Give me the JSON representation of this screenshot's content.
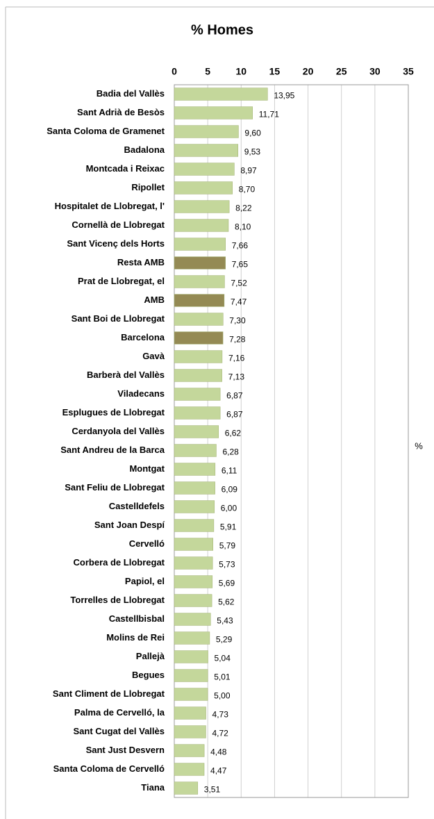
{
  "chart_data": {
    "type": "bar",
    "orientation": "horizontal",
    "title": "% Homes",
    "x_label": "%",
    "categories": [
      "Badia del Vallès",
      "Sant Adrià de Besòs",
      "Santa Coloma de Gramenet",
      "Badalona",
      "Montcada i Reixac",
      "Ripollet",
      "Hospitalet de Llobregat, l'",
      "Cornellà de Llobregat",
      "Sant Vicenç dels Horts",
      "Resta AMB",
      "Prat de Llobregat, el",
      "AMB",
      "Sant Boi de Llobregat",
      "Barcelona",
      "Gavà",
      "Barberà del Vallès",
      "Viladecans",
      "Esplugues de Llobregat",
      "Cerdanyola del Vallès",
      "Sant Andreu de la Barca",
      "Montgat",
      "Sant Feliu de Llobregat",
      "Castelldefels",
      "Sant Joan Despí",
      "Cervelló",
      "Corbera de Llobregat",
      "Papiol, el",
      "Torrelles de Llobregat",
      "Castellbisbal",
      "Molins de Rei",
      "Pallejà",
      "Begues",
      "Sant Climent de Llobregat",
      "Palma de Cervelló, la",
      "Sant Cugat del Vallès",
      "Sant Just Desvern",
      "Santa Coloma de Cervelló",
      "Tiana"
    ],
    "values": [
      13.95,
      11.71,
      9.6,
      9.53,
      8.97,
      8.7,
      8.22,
      8.1,
      7.66,
      7.65,
      7.52,
      7.47,
      7.3,
      7.28,
      7.16,
      7.13,
      6.87,
      6.87,
      6.62,
      6.28,
      6.11,
      6.09,
      6.0,
      5.91,
      5.79,
      5.73,
      5.69,
      5.62,
      5.43,
      5.29,
      5.04,
      5.01,
      5.0,
      4.73,
      4.72,
      4.48,
      4.47,
      3.51
    ],
    "value_labels": [
      "13,95",
      "11,71",
      "9,60",
      "9,53",
      "8,97",
      "8,70",
      "8,22",
      "8,10",
      "7,66",
      "7,65",
      "7,52",
      "7,47",
      "7,30",
      "7,28",
      "7,16",
      "7,13",
      "6,87",
      "6,87",
      "6,62",
      "6,28",
      "6,11",
      "6,09",
      "6,00",
      "5,91",
      "5,79",
      "5,73",
      "5,69",
      "5,62",
      "5,43",
      "5,29",
      "5,04",
      "5,01",
      "5,00",
      "4,73",
      "4,72",
      "4,48",
      "4,47",
      "3,51"
    ],
    "colors": [
      "#c4d79b",
      "#c4d79b",
      "#c4d79b",
      "#c4d79b",
      "#c4d79b",
      "#c4d79b",
      "#c4d79b",
      "#c4d79b",
      "#c4d79b",
      "#948a54",
      "#c4d79b",
      "#948a54",
      "#c4d79b",
      "#948a54",
      "#c4d79b",
      "#c4d79b",
      "#c4d79b",
      "#c4d79b",
      "#c4d79b",
      "#c4d79b",
      "#c4d79b",
      "#c4d79b",
      "#c4d79b",
      "#c4d79b",
      "#c4d79b",
      "#c4d79b",
      "#c4d79b",
      "#c4d79b",
      "#c4d79b",
      "#c4d79b",
      "#c4d79b",
      "#c4d79b",
      "#c4d79b",
      "#c4d79b",
      "#c4d79b",
      "#c4d79b",
      "#c4d79b",
      "#c4d79b"
    ],
    "xlim": [
      0,
      35
    ],
    "xticks": [
      0,
      5,
      10,
      15,
      20,
      25,
      30,
      35
    ],
    "grid": true
  }
}
